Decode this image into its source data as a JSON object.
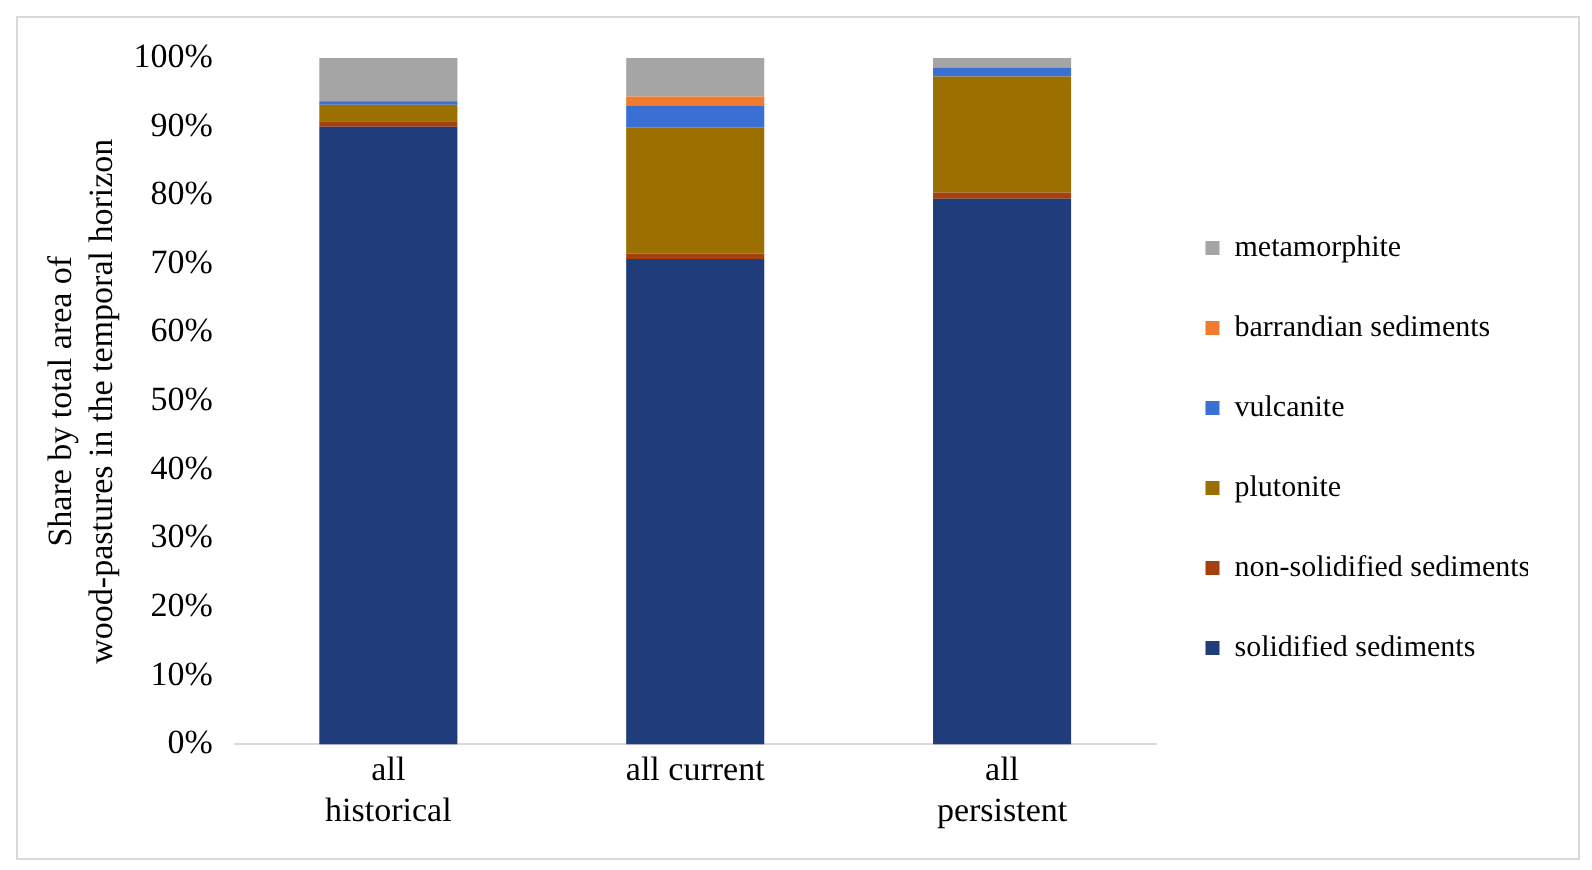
{
  "chart_data": {
    "type": "bar",
    "stacked": true,
    "ylabel": "Share by total area of wood-pastures in the temporal horizon",
    "categories": [
      "all historical",
      "all current",
      "all persistent"
    ],
    "series": [
      {
        "name": "solidified sediments",
        "color": "#1f3d7a",
        "values": [
          90,
          70.7,
          79.5
        ]
      },
      {
        "name": "non-solidified sediments",
        "color": "#a5400f",
        "values": [
          0.8,
          0.8,
          0.9
        ]
      },
      {
        "name": "plutonite",
        "color": "#9c7000",
        "values": [
          2.4,
          18.4,
          16.9
        ]
      },
      {
        "name": "vulcanite",
        "color": "#3a6fd4",
        "values": [
          0.5,
          3.1,
          1.3
        ]
      },
      {
        "name": "barrandian sediments",
        "color": "#f07a30",
        "values": [
          0,
          1.4,
          0
        ]
      },
      {
        "name": "metamorphite",
        "color": "#a5a5a5",
        "values": [
          6.3,
          5.6,
          1.4
        ]
      }
    ],
    "ylim": [
      0,
      100
    ],
    "yticks": [
      {
        "value": 0,
        "label": "0%"
      },
      {
        "value": 10,
        "label": "10%"
      },
      {
        "value": 20,
        "label": "20%"
      },
      {
        "value": 30,
        "label": "30%"
      },
      {
        "value": 40,
        "label": "40%"
      },
      {
        "value": 50,
        "label": "50%"
      },
      {
        "value": 60,
        "label": "60%"
      },
      {
        "value": 70,
        "label": "70%"
      },
      {
        "value": 80,
        "label": "80%"
      },
      {
        "value": 90,
        "label": "90%"
      },
      {
        "value": 100,
        "label": "100%"
      }
    ],
    "grid": false,
    "legend": "right"
  }
}
